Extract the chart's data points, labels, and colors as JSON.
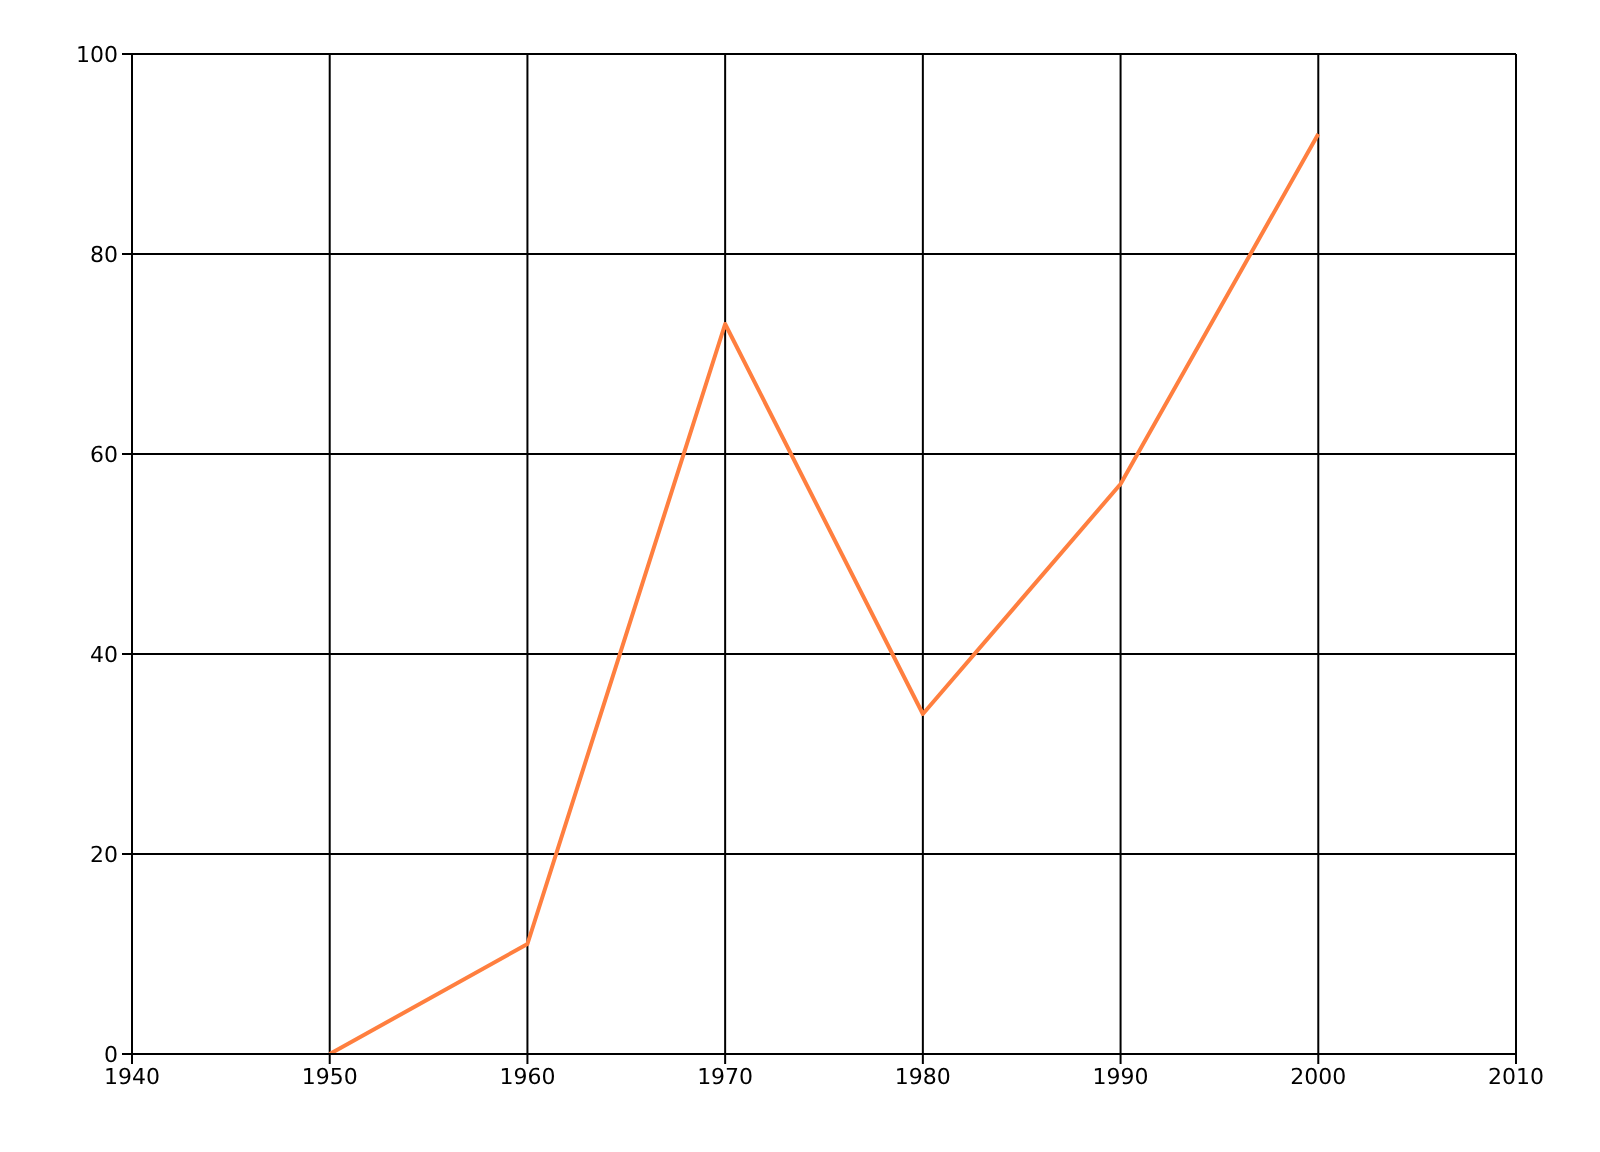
{
  "chart_data": {
    "type": "line",
    "x": [
      1950,
      1960,
      1970,
      1980,
      1990,
      2000
    ],
    "series": [
      {
        "color": "#ff7f3f",
        "values": [
          0,
          11,
          73,
          34,
          57,
          92
        ]
      }
    ],
    "xlim": [
      1940,
      2010
    ],
    "xticks": [
      1940,
      1950,
      1960,
      1970,
      1980,
      1990,
      2000,
      2010
    ],
    "ylim": [
      0,
      100
    ],
    "yticks": [
      0,
      20,
      40,
      60,
      80,
      100
    ],
    "grid": true,
    "legend": false,
    "marker": "none",
    "line_style": "solid"
  }
}
